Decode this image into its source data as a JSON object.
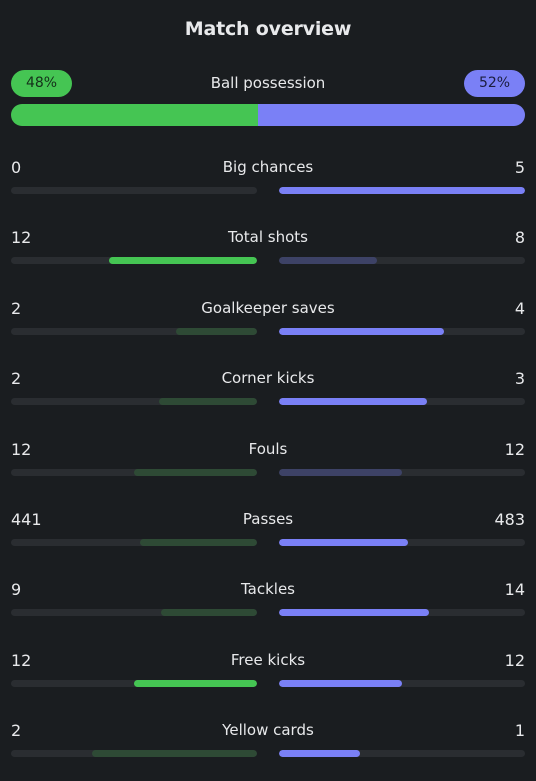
{
  "title": "Match overview",
  "possession": {
    "label": "Ball possession",
    "home": "48%",
    "away": "52%",
    "home_value": 48,
    "away_value": 52
  },
  "colors": {
    "home_strong": "#45c553",
    "home_dim": "#2e4a35",
    "away_strong": "#7a80f6",
    "away_dim": "#3d4266"
  },
  "stats": [
    {
      "name": "Big chances",
      "home": "0",
      "away": "5",
      "home_frac": 0.0,
      "away_frac": 1.0,
      "leader": "away"
    },
    {
      "name": "Total shots",
      "home": "12",
      "away": "8",
      "home_frac": 0.6,
      "away_frac": 0.4,
      "leader": "home"
    },
    {
      "name": "Goalkeeper saves",
      "home": "2",
      "away": "4",
      "home_frac": 0.33,
      "away_frac": 0.67,
      "leader": "away"
    },
    {
      "name": "Corner kicks",
      "home": "2",
      "away": "3",
      "home_frac": 0.4,
      "away_frac": 0.6,
      "leader": "away"
    },
    {
      "name": "Fouls",
      "home": "12",
      "away": "12",
      "home_frac": 0.5,
      "away_frac": 0.5,
      "leader": "none"
    },
    {
      "name": "Passes",
      "home": "441",
      "away": "483",
      "home_frac": 0.477,
      "away_frac": 0.523,
      "leader": "away"
    },
    {
      "name": "Tackles",
      "home": "9",
      "away": "14",
      "home_frac": 0.39,
      "away_frac": 0.61,
      "leader": "away"
    },
    {
      "name": "Free kicks",
      "home": "12",
      "away": "12",
      "home_frac": 0.5,
      "away_frac": 0.5,
      "leader": "both"
    },
    {
      "name": "Yellow cards",
      "home": "2",
      "away": "1",
      "home_frac": 0.67,
      "away_frac": 0.33,
      "leader": "away"
    }
  ]
}
